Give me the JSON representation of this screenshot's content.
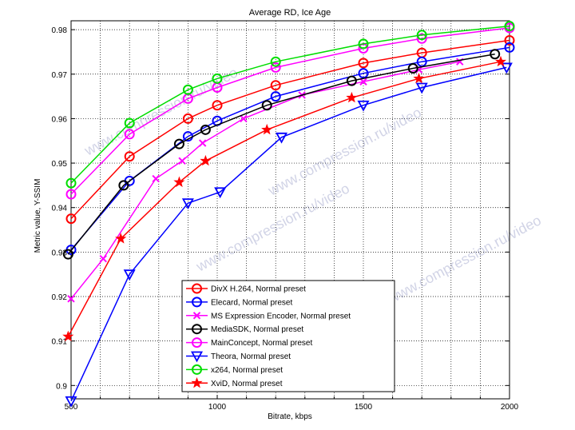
{
  "chart_data": {
    "type": "line",
    "title": "Average RD, Ice Age",
    "xlabel": "Bitrate, kbps",
    "ylabel": "Metric value, Y-SSIM",
    "xlim": [
      500,
      2000
    ],
    "ylim": [
      0.897,
      0.982
    ],
    "xticks": [
      500,
      1000,
      1500,
      2000
    ],
    "yticks": [
      0.9,
      0.91,
      0.92,
      0.93,
      0.94,
      0.95,
      0.96,
      0.97,
      0.98
    ],
    "ytick_labels": [
      "0.9",
      "0.91",
      "0.92",
      "0.93",
      "0.94",
      "0.95",
      "0.96",
      "0.97",
      "0.98"
    ],
    "grid": true,
    "legend_position": "bottom-center",
    "watermark": "www.compression.ru/video",
    "series": [
      {
        "name": "DivX H.264, Normal preset",
        "color": "#ff0000",
        "marker": "circle",
        "x": [
          500,
          700,
          900,
          1000,
          1200,
          1500,
          1700,
          2000
        ],
        "y": [
          0.9375,
          0.9515,
          0.96,
          0.963,
          0.9675,
          0.9725,
          0.9748,
          0.9776
        ]
      },
      {
        "name": "Elecard, Normal preset",
        "color": "#0000ff",
        "marker": "circle",
        "x": [
          500,
          700,
          900,
          1000,
          1200,
          1500,
          1700,
          2000
        ],
        "y": [
          0.9305,
          0.946,
          0.956,
          0.9595,
          0.965,
          0.9702,
          0.9728,
          0.976
        ]
      },
      {
        "name": "MS Expression Encoder, Normal preset",
        "color": "#ff00ff",
        "marker": "x",
        "x": [
          500,
          610,
          790,
          880,
          950,
          1090,
          1290,
          1500,
          1690,
          1830
        ],
        "y": [
          0.9195,
          0.9285,
          0.9465,
          0.9505,
          0.9545,
          0.96,
          0.9653,
          0.9683,
          0.971,
          0.9728
        ]
      },
      {
        "name": "MediaSDK, Normal preset",
        "color": "#000000",
        "marker": "circle",
        "x": [
          490,
          680,
          870,
          960,
          1170,
          1460,
          1670,
          1950
        ],
        "y": [
          0.9295,
          0.945,
          0.9543,
          0.9575,
          0.963,
          0.9685,
          0.9713,
          0.9745
        ]
      },
      {
        "name": "MainConcept, Normal preset",
        "color": "#ff00ff",
        "marker": "circle",
        "x": [
          500,
          700,
          900,
          1000,
          1200,
          1500,
          1700,
          2000
        ],
        "y": [
          0.943,
          0.9565,
          0.9645,
          0.967,
          0.9715,
          0.9758,
          0.978,
          0.9804
        ]
      },
      {
        "name": "Theora, Normal preset",
        "color": "#0000ff",
        "marker": "triangle-down",
        "x": [
          500,
          700,
          900,
          1010,
          1220,
          1500,
          1700,
          1990
        ],
        "y": [
          0.8965,
          0.925,
          0.941,
          0.9435,
          0.9558,
          0.963,
          0.967,
          0.9715
        ]
      },
      {
        "name": "x264, Normal preset",
        "color": "#00dd00",
        "marker": "circle",
        "x": [
          500,
          700,
          900,
          1000,
          1200,
          1500,
          1700,
          2000
        ],
        "y": [
          0.9455,
          0.959,
          0.9665,
          0.969,
          0.9728,
          0.9768,
          0.9788,
          0.9808
        ]
      },
      {
        "name": "XviD, Normal preset",
        "color": "#ff0000",
        "marker": "star",
        "x": [
          490,
          670,
          870,
          960,
          1170,
          1460,
          1690,
          1970
        ],
        "y": [
          0.911,
          0.933,
          0.9457,
          0.9505,
          0.9575,
          0.9647,
          0.969,
          0.9728
        ]
      }
    ]
  }
}
